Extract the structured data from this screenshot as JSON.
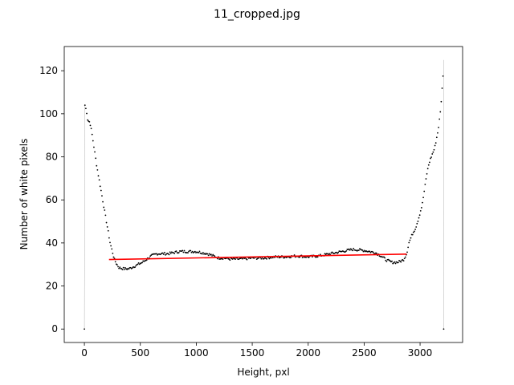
{
  "chart_data": {
    "type": "scatter",
    "title": "11_cropped.jpg",
    "xlabel": "Height, pxl",
    "ylabel": "Number of white pixels",
    "xlim": [
      -180,
      3380
    ],
    "ylim": [
      -6.25,
      131.25
    ],
    "xticks": [
      0,
      500,
      1000,
      1500,
      2000,
      2500,
      3000
    ],
    "yticks": [
      0,
      20,
      40,
      60,
      80,
      100,
      120
    ],
    "xtick_labels": [
      "0",
      "500",
      "1000",
      "1500",
      "2000",
      "2500",
      "3000"
    ],
    "ytick_labels": [
      "0",
      "20",
      "40",
      "60",
      "80",
      "100",
      "120"
    ],
    "grid": false,
    "colors": {
      "points": "#000000",
      "fit": "#ff0000",
      "stems": "#b0b0b0"
    },
    "series": [
      {
        "type": "scatter",
        "profile": [
          [
            0,
            0
          ],
          [
            5,
            104
          ],
          [
            20,
            101
          ],
          [
            30,
            97
          ],
          [
            50,
            96
          ],
          [
            70,
            90
          ],
          [
            90,
            83
          ],
          [
            110,
            76
          ],
          [
            130,
            70
          ],
          [
            150,
            64
          ],
          [
            170,
            58
          ],
          [
            190,
            52
          ],
          [
            210,
            46
          ],
          [
            230,
            40
          ],
          [
            250,
            36
          ],
          [
            270,
            32
          ],
          [
            290,
            30
          ],
          [
            310,
            28.5
          ],
          [
            350,
            28
          ],
          [
            400,
            28
          ],
          [
            440,
            29
          ],
          [
            480,
            30
          ],
          [
            520,
            31
          ],
          [
            560,
            32.5
          ],
          [
            600,
            34
          ],
          [
            650,
            35
          ],
          [
            700,
            35
          ],
          [
            750,
            35
          ],
          [
            800,
            35.5
          ],
          [
            850,
            36
          ],
          [
            900,
            36
          ],
          [
            950,
            36
          ],
          [
            1000,
            36
          ],
          [
            1050,
            35.5
          ],
          [
            1100,
            35
          ],
          [
            1150,
            34
          ],
          [
            1200,
            33
          ],
          [
            1250,
            33
          ],
          [
            1300,
            32.5
          ],
          [
            1400,
            32.5
          ],
          [
            1500,
            33
          ],
          [
            1600,
            33
          ],
          [
            1700,
            33.5
          ],
          [
            1800,
            33.5
          ],
          [
            1900,
            34
          ],
          [
            2000,
            33.5
          ],
          [
            2100,
            34
          ],
          [
            2200,
            35
          ],
          [
            2300,
            36
          ],
          [
            2400,
            37
          ],
          [
            2500,
            36.5
          ],
          [
            2600,
            35.5
          ],
          [
            2650,
            34
          ],
          [
            2700,
            32
          ],
          [
            2750,
            31
          ],
          [
            2800,
            31
          ],
          [
            2850,
            32
          ],
          [
            2880,
            35
          ],
          [
            2900,
            40
          ],
          [
            2930,
            44
          ],
          [
            2960,
            47
          ],
          [
            2990,
            52
          ],
          [
            3020,
            58
          ],
          [
            3040,
            65
          ],
          [
            3060,
            72
          ],
          [
            3080,
            77
          ],
          [
            3100,
            80
          ],
          [
            3130,
            84
          ],
          [
            3160,
            92
          ],
          [
            3180,
            100
          ],
          [
            3195,
            110
          ],
          [
            3205,
            118
          ],
          [
            3210,
            125
          ],
          [
            3211,
            0
          ]
        ]
      },
      {
        "type": "line",
        "x": [
          220,
          2880
        ],
        "y": [
          32.3,
          34.8
        ]
      }
    ]
  }
}
